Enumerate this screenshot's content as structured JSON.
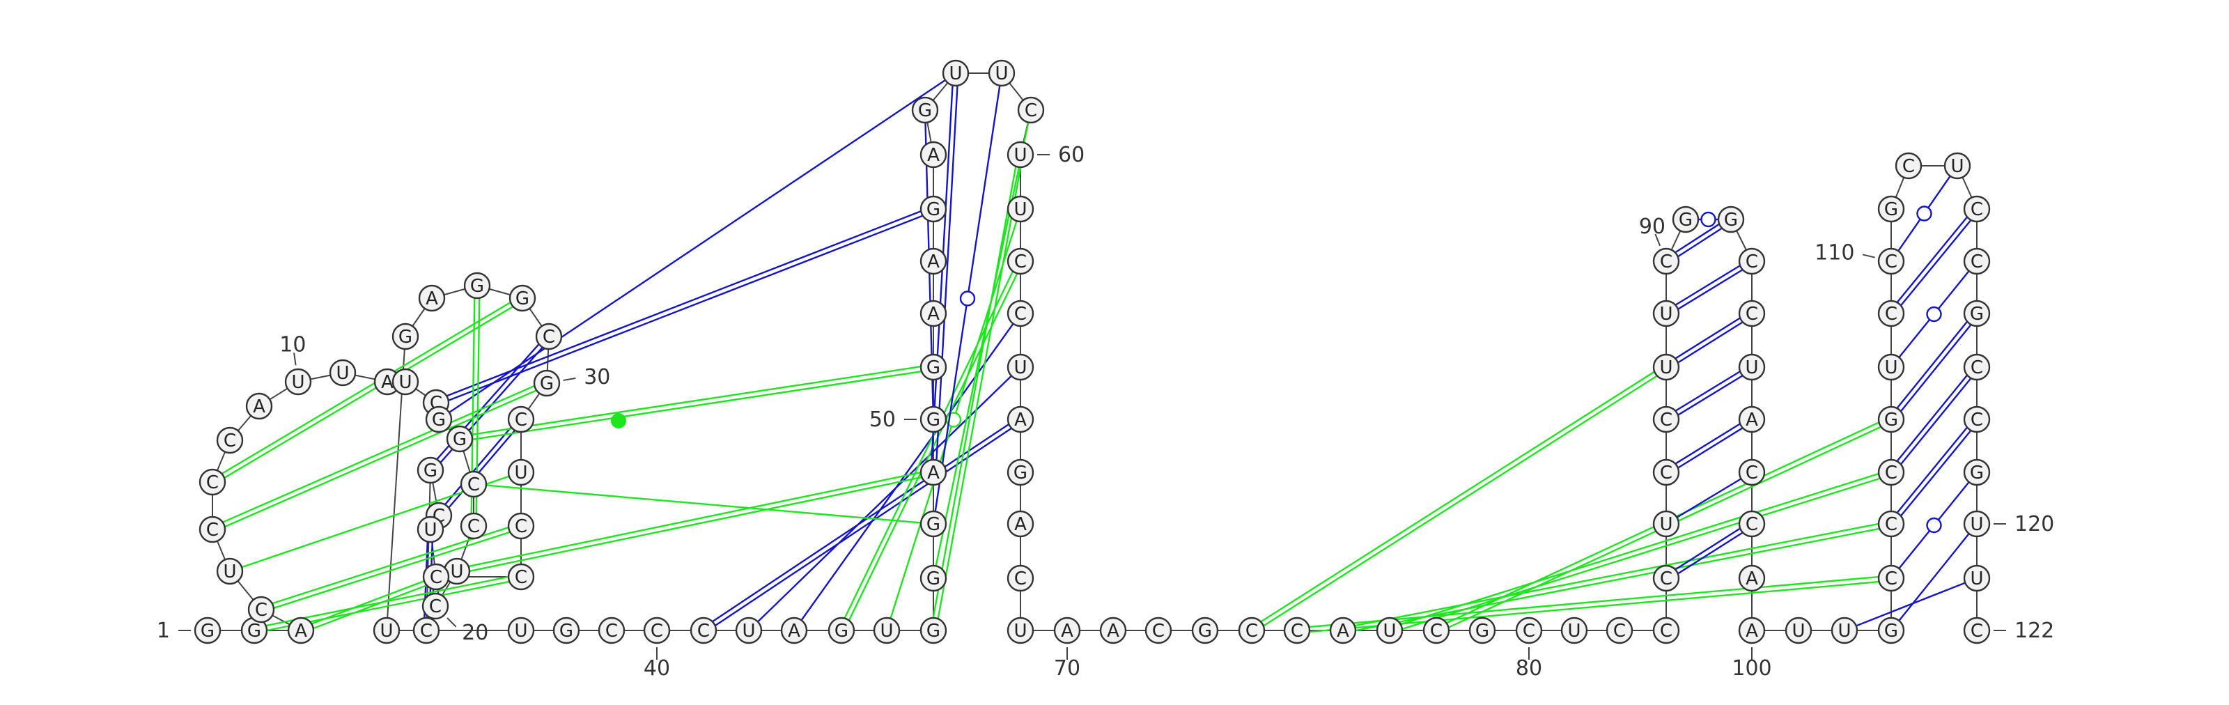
{
  "colors": {
    "canonical_pair": "#1414c8",
    "pseudoknot_pair": "#1ee61e",
    "backbone": "#444444"
  },
  "molecule": {
    "length": 122,
    "sequence": [
      "G",
      "G",
      "A",
      "C",
      "U",
      "C",
      "C",
      "C",
      "A",
      "U",
      "U",
      "A",
      "U",
      "C",
      "G",
      "G",
      "C",
      "C",
      "U",
      "C",
      "C",
      "G",
      "C",
      "U",
      "C",
      "C",
      "C",
      "U",
      "C",
      "G",
      "C",
      "G",
      "G",
      "A",
      "G",
      "U",
      "U",
      "G",
      "C",
      "C",
      "C",
      "U",
      "A",
      "G",
      "U",
      "G",
      "G",
      "G",
      "A",
      "G",
      "G",
      "A",
      "A",
      "G",
      "A",
      "G",
      "U",
      "U",
      "C",
      "U",
      "U",
      "C",
      "C",
      "U",
      "A",
      "G",
      "A",
      "C",
      "U",
      "A",
      "A",
      "C",
      "G",
      "C",
      "C",
      "A",
      "U",
      "C",
      "G",
      "C",
      "U",
      "C",
      "C",
      "C",
      "U",
      "C",
      "C",
      "U",
      "U",
      "C",
      "G",
      "G",
      "C",
      "C",
      "U",
      "A",
      "C",
      "C",
      "A",
      "A",
      "U",
      "U",
      "G",
      "C",
      "C",
      "C",
      "G",
      "U",
      "C",
      "C",
      "G",
      "C",
      "U",
      "C",
      "C",
      "G",
      "C",
      "C",
      "G",
      "U",
      "U",
      "C"
    ],
    "number_labels": [
      {
        "pos": 1,
        "text": "1"
      },
      {
        "pos": 10,
        "text": "10"
      },
      {
        "pos": 20,
        "text": "20"
      },
      {
        "pos": 30,
        "text": "30"
      },
      {
        "pos": 40,
        "text": "40"
      },
      {
        "pos": 50,
        "text": "50"
      },
      {
        "pos": 60,
        "text": "60"
      },
      {
        "pos": 70,
        "text": "70"
      },
      {
        "pos": 80,
        "text": "80"
      },
      {
        "pos": 90,
        "text": "90"
      },
      {
        "pos": 100,
        "text": "100"
      },
      {
        "pos": 110,
        "text": "110"
      },
      {
        "pos": 120,
        "text": "120"
      },
      {
        "pos": 122,
        "text": "122"
      }
    ],
    "pairs": [
      {
        "i": 14,
        "j": 54,
        "kind": "canonical",
        "style": "double"
      },
      {
        "i": 15,
        "j": 57,
        "kind": "canonical",
        "style": "single"
      },
      {
        "i": 20,
        "j": 25,
        "kind": "canonical",
        "style": "double"
      },
      {
        "i": 21,
        "j": 24,
        "kind": "canonical",
        "style": "double"
      },
      {
        "i": 22,
        "j": 31,
        "kind": "canonical",
        "style": "double"
      },
      {
        "i": 23,
        "j": 29,
        "kind": "canonical",
        "style": "double"
      },
      {
        "i": 41,
        "j": 65,
        "kind": "canonical",
        "style": "double"
      },
      {
        "i": 42,
        "j": 64,
        "kind": "canonical",
        "style": "single"
      },
      {
        "i": 43,
        "j": 63,
        "kind": "canonical",
        "style": "single"
      },
      {
        "i": 44,
        "j": 62,
        "kind": "pseudoknot",
        "style": "double"
      },
      {
        "i": 45,
        "j": 61,
        "kind": "pseudoknot",
        "style": "wobble"
      },
      {
        "i": 46,
        "j": 60,
        "kind": "pseudoknot",
        "style": "double"
      },
      {
        "i": 47,
        "j": 59,
        "kind": "pseudoknot",
        "style": "single"
      },
      {
        "i": 48,
        "j": 58,
        "kind": "canonical",
        "style": "wobble"
      },
      {
        "i": 49,
        "j": 57,
        "kind": "canonical",
        "style": "double"
      },
      {
        "i": 50,
        "j": 56,
        "kind": "canonical",
        "style": "single"
      },
      {
        "i": 3,
        "j": 19,
        "kind": "pseudoknot",
        "style": "double"
      },
      {
        "i": 2,
        "j": 26,
        "kind": "pseudoknot",
        "style": "double"
      },
      {
        "i": 4,
        "j": 27,
        "kind": "pseudoknot",
        "style": "double"
      },
      {
        "i": 5,
        "j": 28,
        "kind": "pseudoknot",
        "style": "single"
      },
      {
        "i": 6,
        "j": 30,
        "kind": "pseudoknot",
        "style": "double"
      },
      {
        "i": 7,
        "j": 32,
        "kind": "pseudoknot",
        "style": "double"
      },
      {
        "i": 18,
        "j": 33,
        "kind": "pseudoknot",
        "style": "double"
      },
      {
        "i": 19,
        "j": 49,
        "kind": "pseudoknot",
        "style": "double"
      },
      {
        "i": 16,
        "j": 51,
        "kind": "pseudoknot",
        "style": "double"
      },
      {
        "i": 17,
        "j": 48,
        "kind": "pseudoknot",
        "style": "single"
      },
      {
        "i": 74,
        "j": 88,
        "kind": "pseudoknot",
        "style": "double"
      },
      {
        "i": 75,
        "j": 104,
        "kind": "pseudoknot",
        "style": "double"
      },
      {
        "i": 76,
        "j": 105,
        "kind": "pseudoknot",
        "style": "double"
      },
      {
        "i": 77,
        "j": 106,
        "kind": "pseudoknot",
        "style": "double"
      },
      {
        "i": 78,
        "j": 107,
        "kind": "pseudoknot",
        "style": "double"
      },
      {
        "i": 84,
        "j": 98,
        "kind": "canonical",
        "style": "double"
      },
      {
        "i": 85,
        "j": 97,
        "kind": "canonical",
        "style": "single"
      },
      {
        "i": 86,
        "j": 96,
        "kind": "canonical",
        "style": "double"
      },
      {
        "i": 87,
        "j": 95,
        "kind": "canonical",
        "style": "double"
      },
      {
        "i": 88,
        "j": 94,
        "kind": "canonical",
        "style": "double"
      },
      {
        "i": 89,
        "j": 93,
        "kind": "canonical",
        "style": "double"
      },
      {
        "i": 90,
        "j": 92,
        "kind": "canonical",
        "style": "double"
      },
      {
        "i": 91,
        "j": 92,
        "kind": "canonical",
        "style": "wobble"
      },
      {
        "i": 102,
        "j": 121,
        "kind": "canonical",
        "style": "single"
      },
      {
        "i": 103,
        "j": 120,
        "kind": "canonical",
        "style": "single"
      },
      {
        "i": 104,
        "j": 119,
        "kind": "canonical",
        "style": "wobble"
      },
      {
        "i": 105,
        "j": 118,
        "kind": "canonical",
        "style": "double"
      },
      {
        "i": 106,
        "j": 117,
        "kind": "canonical",
        "style": "double"
      },
      {
        "i": 107,
        "j": 116,
        "kind": "canonical",
        "style": "double"
      },
      {
        "i": 108,
        "j": 115,
        "kind": "canonical",
        "style": "wobble"
      },
      {
        "i": 109,
        "j": 114,
        "kind": "canonical",
        "style": "double"
      },
      {
        "i": 110,
        "j": 113,
        "kind": "canonical",
        "style": "wobble"
      }
    ]
  }
}
